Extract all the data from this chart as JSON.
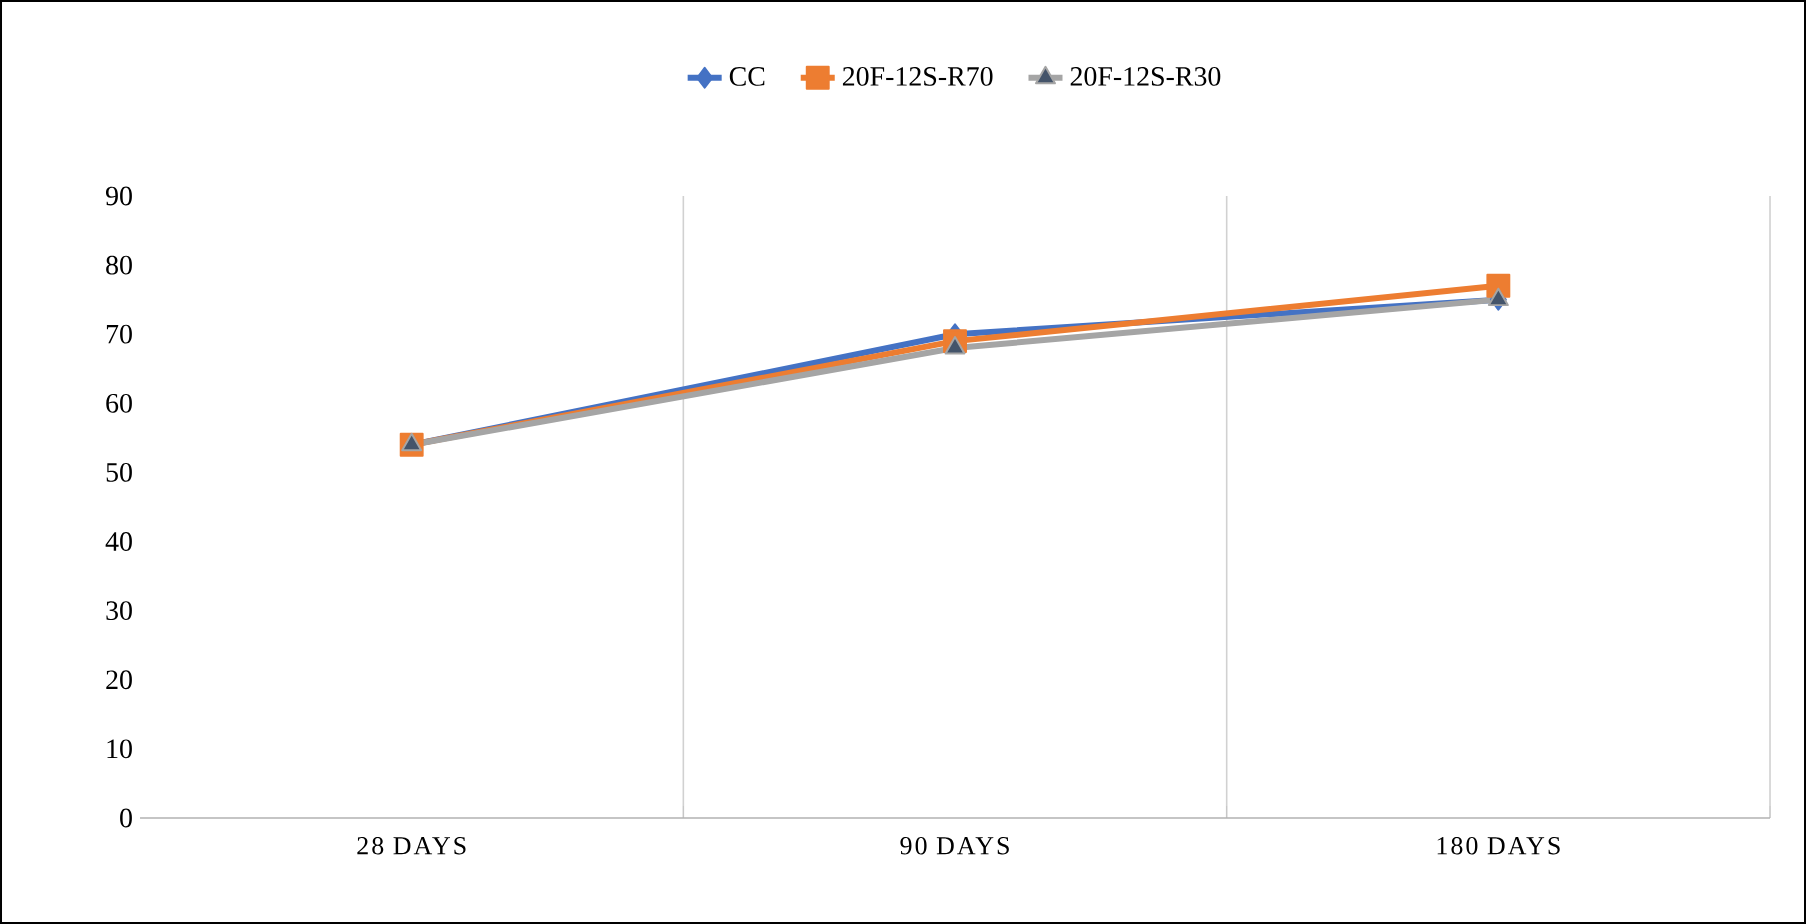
{
  "chart_data": {
    "type": "line",
    "categories": [
      "28 DAYS",
      "90 DAYS",
      "180 DAYS"
    ],
    "series": [
      {
        "name": "CC",
        "color": "#4472c4",
        "marker": "diamond",
        "values": [
          54,
          70,
          75
        ]
      },
      {
        "name": "20F-12S-R70",
        "color": "#ed7d31",
        "marker": "square",
        "values": [
          54,
          69,
          77
        ]
      },
      {
        "name": "20F-12S-R30",
        "color": "#a5a5a5",
        "marker": "triangle",
        "values": [
          54,
          68,
          75
        ]
      }
    ],
    "ylim": [
      0,
      90
    ],
    "yticks": [
      0,
      10,
      20,
      30,
      40,
      50,
      60,
      70,
      80,
      90
    ],
    "grid": "x",
    "legend": "top"
  }
}
